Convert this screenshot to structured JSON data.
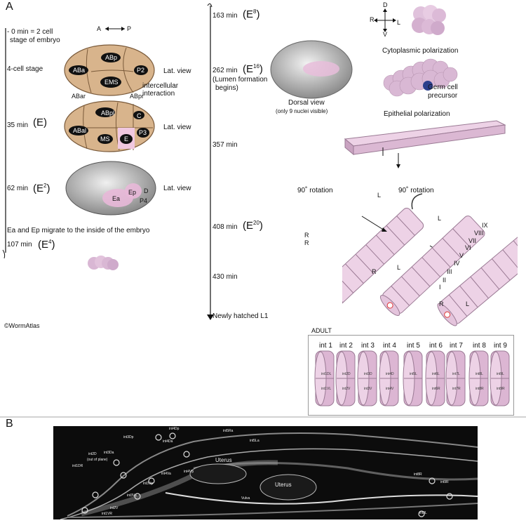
{
  "panel_a": {
    "letter": "A",
    "axis_ap": {
      "a": "A",
      "p": "P"
    },
    "timeline_left": {
      "t0": "- 0 min = 2 cell\nstage of embryo",
      "t0_line1": "- 0 min = 2 cell",
      "t0_line2": "stage of embryo",
      "four_cell": "4-cell stage",
      "t35": "35 min",
      "t35_e": "(E)",
      "t62": "62 min",
      "t62_e": "(E",
      "t62_sup": "2",
      "migrate": "Ea and Ep migrate to the inside of the embryo",
      "t107": "107 min",
      "t107_e": "(E",
      "t107_sup": "4"
    },
    "embryo1": {
      "cells": [
        "ABa",
        "ABp",
        "EMS",
        "P2"
      ],
      "view": "Lat. view",
      "note1": "intercellular",
      "note2": "interaction"
    },
    "embryo2": {
      "top_labels": [
        "ABar",
        "ABpr"
      ],
      "cells": [
        "ABpl",
        "C",
        "ABal",
        "MS",
        "E",
        "P3"
      ],
      "view": "Lat. view"
    },
    "embryo3": {
      "cells": [
        "Ea",
        "Ep",
        "D",
        "P4"
      ],
      "view": "Lat. view"
    },
    "timeline_mid": {
      "t163": "163 min",
      "t163_e": "(E",
      "t163_sup": "8",
      "t262": "262 min",
      "t262_e": "(E",
      "t262_sup": "16",
      "lumen1": "(Lumen formation",
      "lumen2": "begins)",
      "t357": "357 min",
      "t408": "408 min",
      "t408_e": "(E",
      "t408_sup": "20",
      "t430": "430 min",
      "hatched": "Newly hatched L1"
    },
    "dorsal": {
      "line1": "Dorsal view",
      "line2": "(only 9 nuclei visible)"
    },
    "compass": {
      "d": "D",
      "v": "V",
      "r": "R",
      "l": "L"
    },
    "cyto": "Cytoplasmic polarization",
    "germ1": "Germ cell",
    "germ2": "precursor",
    "epi": "Epithelial polarization",
    "rot1": "90˚ rotation",
    "rot2": "90˚ rotation",
    "ring_l": "L",
    "ring_r": "R",
    "roman": [
      "I",
      "II",
      "III",
      "IV",
      "V",
      "VI",
      "VII",
      "VIII",
      "IX"
    ],
    "credit": "©WormAtlas",
    "adult": {
      "title": "ADULT",
      "rings": [
        "int 1",
        "int 2",
        "int 3",
        "int 4",
        "int 5",
        "int 6",
        "int 7",
        "int 8",
        "int 9"
      ],
      "cells": [
        [
          "int1DL",
          "int1VL"
        ],
        [
          "int2D",
          "int2V"
        ],
        [
          "int3D",
          "int3V"
        ],
        [
          "int4D",
          "int4V"
        ],
        [
          "int5L",
          ""
        ],
        [
          "int6L",
          "int6R"
        ],
        [
          "int7L",
          "int7R"
        ],
        [
          "int8L",
          "int8R"
        ],
        [
          "int9L",
          "int9R"
        ]
      ]
    }
  },
  "panel_b": {
    "letter": "B",
    "labels": [
      "int4Dp",
      "int5Ra",
      "int3Dp",
      "int4Da",
      "int5La",
      "int2D",
      "(out of plane)",
      "int3Da",
      "int1DR",
      "Uterus",
      "int4Va",
      "int4Vp",
      "int3Vp",
      "Uterus",
      "int3Va",
      "Vulva",
      "int8R",
      "int9R",
      "int2V",
      "int1VR",
      "int9L"
    ]
  }
}
